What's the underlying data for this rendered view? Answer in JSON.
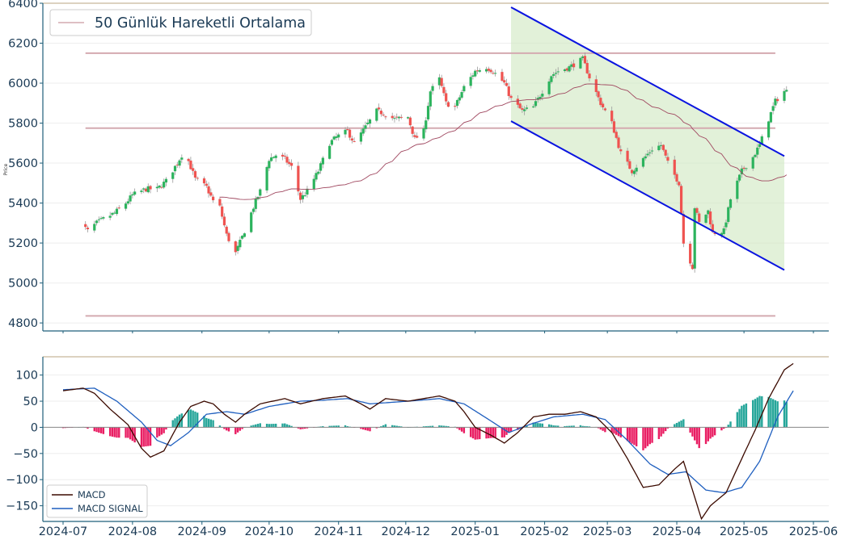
{
  "chart_data": [
    {
      "type": "candlestick",
      "ylabel": "Price",
      "ylim": [
        4760,
        6400
      ],
      "yticks": [
        4800,
        5000,
        5200,
        5400,
        5600,
        5800,
        6000,
        6200,
        6400
      ],
      "legend": {
        "placement": "top-left",
        "entries": [
          "50 Günlük Hareketli Ortalama"
        ]
      },
      "horizontal_levels": [
        6150,
        5775,
        4835
      ],
      "trend_channel": {
        "upper": {
          "start": [
            "2025-01-17",
            6380
          ],
          "end": [
            "2025-05-19",
            5635
          ]
        },
        "lower": {
          "start": [
            "2025-01-17",
            5810
          ],
          "end": [
            "2025-05-19",
            5065
          ]
        }
      },
      "close_anchors": [
        [
          "2024-07-01",
          5300
        ],
        [
          "2024-07-05",
          5320
        ],
        [
          "2024-07-09",
          5300
        ],
        [
          "2024-07-12",
          5260
        ],
        [
          "2024-07-16",
          5300
        ],
        [
          "2024-07-19",
          5320
        ],
        [
          "2024-07-24",
          5350
        ],
        [
          "2024-07-29",
          5400
        ],
        [
          "2024-08-01",
          5440
        ],
        [
          "2024-08-07",
          5470
        ],
        [
          "2024-08-12",
          5470
        ],
        [
          "2024-08-16",
          5510
        ],
        [
          "2024-08-21",
          5600
        ],
        [
          "2024-08-23",
          5640
        ],
        [
          "2024-08-26",
          5610
        ],
        [
          "2024-08-29",
          5520
        ],
        [
          "2024-09-03",
          5480
        ],
        [
          "2024-09-06",
          5410
        ],
        [
          "2024-09-09",
          5380
        ],
        [
          "2024-09-12",
          5240
        ],
        [
          "2024-09-16",
          5150
        ],
        [
          "2024-09-19",
          5230
        ],
        [
          "2024-09-24",
          5380
        ],
        [
          "2024-09-27",
          5460
        ],
        [
          "2024-10-01",
          5620
        ],
        [
          "2024-10-04",
          5640
        ],
        [
          "2024-10-08",
          5620
        ],
        [
          "2024-10-11",
          5580
        ],
        [
          "2024-10-15",
          5420
        ],
        [
          "2024-10-18",
          5460
        ],
        [
          "2024-10-23",
          5560
        ],
        [
          "2024-10-28",
          5700
        ],
        [
          "2024-10-31",
          5730
        ],
        [
          "2024-11-05",
          5760
        ],
        [
          "2024-11-08",
          5700
        ],
        [
          "2024-11-13",
          5780
        ],
        [
          "2024-11-18",
          5860
        ],
        [
          "2024-11-21",
          5850
        ],
        [
          "2024-11-26",
          5820
        ],
        [
          "2024-12-02",
          5830
        ],
        [
          "2024-12-05",
          5720
        ],
        [
          "2024-12-09",
          5760
        ],
        [
          "2024-12-12",
          5960
        ],
        [
          "2024-12-16",
          6020
        ],
        [
          "2024-12-19",
          5900
        ],
        [
          "2024-12-23",
          5880
        ],
        [
          "2024-12-27",
          5980
        ],
        [
          "2025-01-01",
          6060
        ],
        [
          "2025-01-06",
          6080
        ],
        [
          "2025-01-09",
          6060
        ],
        [
          "2025-01-14",
          6000
        ],
        [
          "2025-01-17",
          5920
        ],
        [
          "2025-01-22",
          5860
        ],
        [
          "2025-01-27",
          5880
        ],
        [
          "2025-01-31",
          5960
        ],
        [
          "2025-02-04",
          6040
        ],
        [
          "2025-02-07",
          6060
        ],
        [
          "2025-02-12",
          6080
        ],
        [
          "2025-02-18",
          6120
        ],
        [
          "2025-02-21",
          6030
        ],
        [
          "2025-02-26",
          5900
        ],
        [
          "2025-03-03",
          5800
        ],
        [
          "2025-03-07",
          5650
        ],
        [
          "2025-03-12",
          5560
        ],
        [
          "2025-03-17",
          5620
        ],
        [
          "2025-03-21",
          5670
        ],
        [
          "2025-03-25",
          5690
        ],
        [
          "2025-03-28",
          5600
        ],
        [
          "2025-04-02",
          5500
        ],
        [
          "2025-04-04",
          5200
        ],
        [
          "2025-04-08",
          5080
        ],
        [
          "2025-04-09",
          5380
        ],
        [
          "2025-04-11",
          5300
        ],
        [
          "2025-04-15",
          5360
        ],
        [
          "2025-04-17",
          5250
        ],
        [
          "2025-04-22",
          5260
        ],
        [
          "2025-04-25",
          5420
        ],
        [
          "2025-04-30",
          5560
        ],
        [
          "2025-05-05",
          5630
        ],
        [
          "2025-05-08",
          5690
        ],
        [
          "2025-05-12",
          5820
        ],
        [
          "2025-05-15",
          5910
        ],
        [
          "2025-05-19",
          5960
        ]
      ]
    },
    {
      "type": "line+bar",
      "ylim": [
        -180,
        135
      ],
      "yticks": [
        -150,
        -100,
        -50,
        0,
        50,
        100
      ],
      "legend": {
        "placement": "bottom-left",
        "entries": [
          "MACD",
          "MACD SIGNAL"
        ]
      },
      "xticks": [
        "2024-07",
        "2024-08",
        "2024-09",
        "2024-10",
        "2024-11",
        "2024-12",
        "2025-01",
        "2025-02",
        "2025-03",
        "2025-04",
        "2025-05",
        "2025-06"
      ],
      "series": [
        {
          "name": "MACD",
          "color": "#3b0a00",
          "points": [
            [
              "2024-07-01",
              70
            ],
            [
              "2024-07-10",
              75
            ],
            [
              "2024-07-15",
              65
            ],
            [
              "2024-07-22",
              35
            ],
            [
              "2024-07-30",
              5
            ],
            [
              "2024-08-05",
              -40
            ],
            [
              "2024-08-09",
              -57
            ],
            [
              "2024-08-15",
              -45
            ],
            [
              "2024-08-22",
              10
            ],
            [
              "2024-08-27",
              40
            ],
            [
              "2024-09-02",
              50
            ],
            [
              "2024-09-06",
              45
            ],
            [
              "2024-09-11",
              25
            ],
            [
              "2024-09-16",
              10
            ],
            [
              "2024-09-20",
              25
            ],
            [
              "2024-09-27",
              45
            ],
            [
              "2024-10-08",
              55
            ],
            [
              "2024-10-15",
              45
            ],
            [
              "2024-10-25",
              55
            ],
            [
              "2024-11-04",
              60
            ],
            [
              "2024-11-11",
              45
            ],
            [
              "2024-11-15",
              35
            ],
            [
              "2024-11-22",
              55
            ],
            [
              "2024-12-02",
              50
            ],
            [
              "2024-12-09",
              55
            ],
            [
              "2024-12-16",
              60
            ],
            [
              "2024-12-23",
              50
            ],
            [
              "2024-12-27",
              30
            ],
            [
              "2025-01-01",
              0
            ],
            [
              "2025-01-08",
              -15
            ],
            [
              "2025-01-14",
              -30
            ],
            [
              "2025-01-20",
              -10
            ],
            [
              "2025-01-27",
              20
            ],
            [
              "2025-02-03",
              25
            ],
            [
              "2025-02-10",
              25
            ],
            [
              "2025-02-17",
              30
            ],
            [
              "2025-02-24",
              20
            ],
            [
              "2025-03-03",
              -10
            ],
            [
              "2025-03-10",
              -60
            ],
            [
              "2025-03-17",
              -115
            ],
            [
              "2025-03-24",
              -110
            ],
            [
              "2025-03-31",
              -80
            ],
            [
              "2025-04-04",
              -65
            ],
            [
              "2025-04-08",
              -120
            ],
            [
              "2025-04-12",
              -175
            ],
            [
              "2025-04-16",
              -150
            ],
            [
              "2025-04-23",
              -125
            ],
            [
              "2025-04-30",
              -60
            ],
            [
              "2025-05-06",
              -5
            ],
            [
              "2025-05-12",
              55
            ],
            [
              "2025-05-19",
              110
            ],
            [
              "2025-05-23",
              122
            ]
          ]
        },
        {
          "name": "MACD SIGNAL",
          "color": "#1f5fbf",
          "points": [
            [
              "2024-07-01",
              72
            ],
            [
              "2024-07-15",
              75
            ],
            [
              "2024-07-25",
              50
            ],
            [
              "2024-08-05",
              10
            ],
            [
              "2024-08-12",
              -25
            ],
            [
              "2024-08-18",
              -35
            ],
            [
              "2024-08-26",
              -10
            ],
            [
              "2024-09-03",
              25
            ],
            [
              "2024-09-12",
              30
            ],
            [
              "2024-09-20",
              25
            ],
            [
              "2024-10-01",
              40
            ],
            [
              "2024-10-15",
              50
            ],
            [
              "2024-10-25",
              52
            ],
            [
              "2024-11-05",
              55
            ],
            [
              "2024-11-15",
              45
            ],
            [
              "2024-12-02",
              50
            ],
            [
              "2024-12-16",
              55
            ],
            [
              "2024-12-27",
              45
            ],
            [
              "2025-01-07",
              15
            ],
            [
              "2025-01-16",
              -10
            ],
            [
              "2025-01-25",
              5
            ],
            [
              "2025-02-05",
              20
            ],
            [
              "2025-02-18",
              25
            ],
            [
              "2025-02-28",
              15
            ],
            [
              "2025-03-10",
              -25
            ],
            [
              "2025-03-20",
              -70
            ],
            [
              "2025-03-28",
              -90
            ],
            [
              "2025-04-05",
              -85
            ],
            [
              "2025-04-14",
              -120
            ],
            [
              "2025-04-22",
              -125
            ],
            [
              "2025-04-30",
              -115
            ],
            [
              "2025-05-08",
              -65
            ],
            [
              "2025-05-16",
              20
            ],
            [
              "2025-05-23",
              70
            ]
          ]
        }
      ],
      "histogram_colors": {
        "positive": "#26a69a",
        "negative": "#e91e63"
      }
    }
  ]
}
